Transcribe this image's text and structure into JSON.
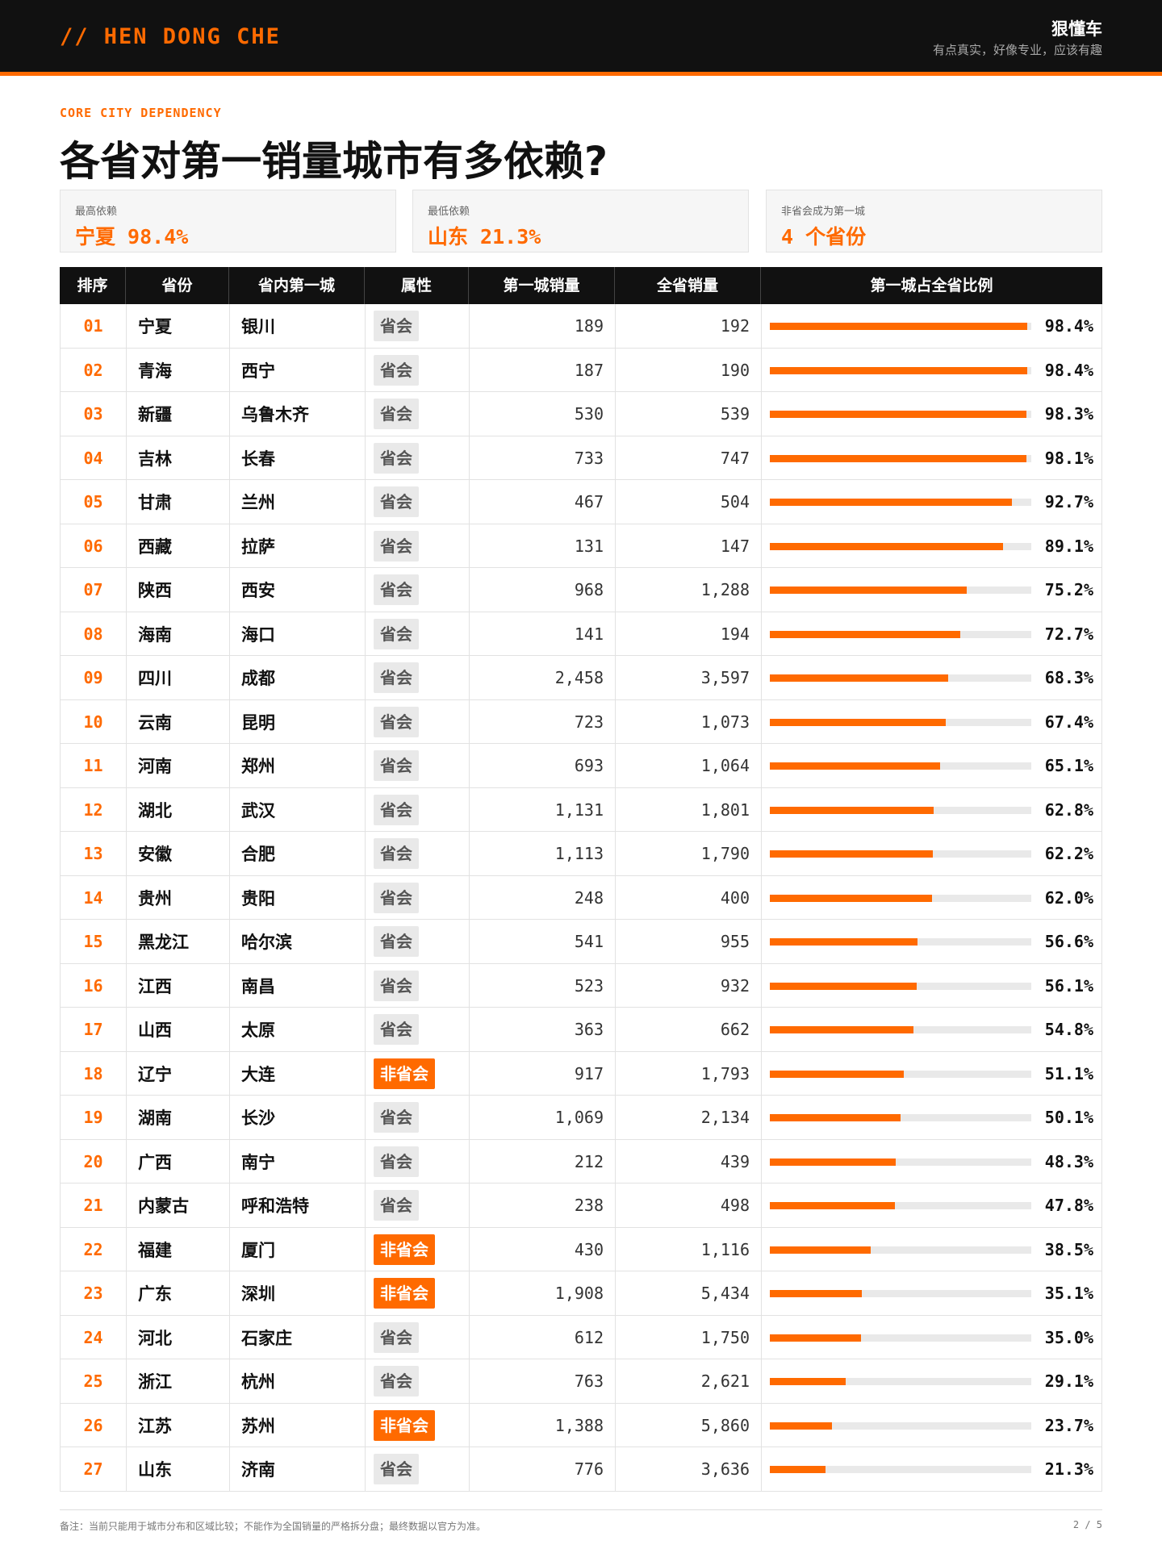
{
  "header": {
    "brand_en": "// HEN DONG CHE",
    "brand_cn": "狠懂车",
    "slogan": "有点真实，好像专业，应该有趣"
  },
  "kicker": "CORE CITY DEPENDENCY",
  "title": "各省对第一销量城市有多依赖?",
  "stats": [
    {
      "label": "最高依赖",
      "value": "宁夏 98.4%"
    },
    {
      "label": "最低依赖",
      "value": "山东 21.3%"
    },
    {
      "label": "非省会成为第一城",
      "value": "4 个省份"
    }
  ],
  "table": {
    "headers": [
      "排序",
      "省份",
      "省内第一城",
      "属性",
      "第一城销量",
      "全省销量",
      "第一城占全省比例"
    ],
    "rows": [
      {
        "rank": "01",
        "province": "宁夏",
        "city": "银川",
        "attr": "省会",
        "first_city_sales": "189",
        "province_sales": "192",
        "share": 98.4,
        "share_label": "98.4%"
      },
      {
        "rank": "02",
        "province": "青海",
        "city": "西宁",
        "attr": "省会",
        "first_city_sales": "187",
        "province_sales": "190",
        "share": 98.4,
        "share_label": "98.4%"
      },
      {
        "rank": "03",
        "province": "新疆",
        "city": "乌鲁木齐",
        "attr": "省会",
        "first_city_sales": "530",
        "province_sales": "539",
        "share": 98.3,
        "share_label": "98.3%"
      },
      {
        "rank": "04",
        "province": "吉林",
        "city": "长春",
        "attr": "省会",
        "first_city_sales": "733",
        "province_sales": "747",
        "share": 98.1,
        "share_label": "98.1%"
      },
      {
        "rank": "05",
        "province": "甘肃",
        "city": "兰州",
        "attr": "省会",
        "first_city_sales": "467",
        "province_sales": "504",
        "share": 92.7,
        "share_label": "92.7%"
      },
      {
        "rank": "06",
        "province": "西藏",
        "city": "拉萨",
        "attr": "省会",
        "first_city_sales": "131",
        "province_sales": "147",
        "share": 89.1,
        "share_label": "89.1%"
      },
      {
        "rank": "07",
        "province": "陕西",
        "city": "西安",
        "attr": "省会",
        "first_city_sales": "968",
        "province_sales": "1,288",
        "share": 75.2,
        "share_label": "75.2%"
      },
      {
        "rank": "08",
        "province": "海南",
        "city": "海口",
        "attr": "省会",
        "first_city_sales": "141",
        "province_sales": "194",
        "share": 72.7,
        "share_label": "72.7%"
      },
      {
        "rank": "09",
        "province": "四川",
        "city": "成都",
        "attr": "省会",
        "first_city_sales": "2,458",
        "province_sales": "3,597",
        "share": 68.3,
        "share_label": "68.3%"
      },
      {
        "rank": "10",
        "province": "云南",
        "city": "昆明",
        "attr": "省会",
        "first_city_sales": "723",
        "province_sales": "1,073",
        "share": 67.4,
        "share_label": "67.4%"
      },
      {
        "rank": "11",
        "province": "河南",
        "city": "郑州",
        "attr": "省会",
        "first_city_sales": "693",
        "province_sales": "1,064",
        "share": 65.1,
        "share_label": "65.1%"
      },
      {
        "rank": "12",
        "province": "湖北",
        "city": "武汉",
        "attr": "省会",
        "first_city_sales": "1,131",
        "province_sales": "1,801",
        "share": 62.8,
        "share_label": "62.8%"
      },
      {
        "rank": "13",
        "province": "安徽",
        "city": "合肥",
        "attr": "省会",
        "first_city_sales": "1,113",
        "province_sales": "1,790",
        "share": 62.2,
        "share_label": "62.2%"
      },
      {
        "rank": "14",
        "province": "贵州",
        "city": "贵阳",
        "attr": "省会",
        "first_city_sales": "248",
        "province_sales": "400",
        "share": 62.0,
        "share_label": "62.0%"
      },
      {
        "rank": "15",
        "province": "黑龙江",
        "city": "哈尔滨",
        "attr": "省会",
        "first_city_sales": "541",
        "province_sales": "955",
        "share": 56.6,
        "share_label": "56.6%"
      },
      {
        "rank": "16",
        "province": "江西",
        "city": "南昌",
        "attr": "省会",
        "first_city_sales": "523",
        "province_sales": "932",
        "share": 56.1,
        "share_label": "56.1%"
      },
      {
        "rank": "17",
        "province": "山西",
        "city": "太原",
        "attr": "省会",
        "first_city_sales": "363",
        "province_sales": "662",
        "share": 54.8,
        "share_label": "54.8%"
      },
      {
        "rank": "18",
        "province": "辽宁",
        "city": "大连",
        "attr": "非省会",
        "first_city_sales": "917",
        "province_sales": "1,793",
        "share": 51.1,
        "share_label": "51.1%"
      },
      {
        "rank": "19",
        "province": "湖南",
        "city": "长沙",
        "attr": "省会",
        "first_city_sales": "1,069",
        "province_sales": "2,134",
        "share": 50.1,
        "share_label": "50.1%"
      },
      {
        "rank": "20",
        "province": "广西",
        "city": "南宁",
        "attr": "省会",
        "first_city_sales": "212",
        "province_sales": "439",
        "share": 48.3,
        "share_label": "48.3%"
      },
      {
        "rank": "21",
        "province": "内蒙古",
        "city": "呼和浩特",
        "attr": "省会",
        "first_city_sales": "238",
        "province_sales": "498",
        "share": 47.8,
        "share_label": "47.8%"
      },
      {
        "rank": "22",
        "province": "福建",
        "city": "厦门",
        "attr": "非省会",
        "first_city_sales": "430",
        "province_sales": "1,116",
        "share": 38.5,
        "share_label": "38.5%"
      },
      {
        "rank": "23",
        "province": "广东",
        "city": "深圳",
        "attr": "非省会",
        "first_city_sales": "1,908",
        "province_sales": "5,434",
        "share": 35.1,
        "share_label": "35.1%"
      },
      {
        "rank": "24",
        "province": "河北",
        "city": "石家庄",
        "attr": "省会",
        "first_city_sales": "612",
        "province_sales": "1,750",
        "share": 35.0,
        "share_label": "35.0%"
      },
      {
        "rank": "25",
        "province": "浙江",
        "city": "杭州",
        "attr": "省会",
        "first_city_sales": "763",
        "province_sales": "2,621",
        "share": 29.1,
        "share_label": "29.1%"
      },
      {
        "rank": "26",
        "province": "江苏",
        "city": "苏州",
        "attr": "非省会",
        "first_city_sales": "1,388",
        "province_sales": "5,860",
        "share": 23.7,
        "share_label": "23.7%"
      },
      {
        "rank": "27",
        "province": "山东",
        "city": "济南",
        "attr": "省会",
        "first_city_sales": "776",
        "province_sales": "3,636",
        "share": 21.3,
        "share_label": "21.3%"
      }
    ]
  },
  "footer": {
    "note": "备注：当前只能用于城市分布和区域比较；不能作为全国销量的严格拆分盘；最终数据以官方为准。",
    "page": "2 / 5"
  },
  "colors": {
    "accent": "#ff6a00",
    "dark": "#111111",
    "track": "#e9e9e9"
  }
}
